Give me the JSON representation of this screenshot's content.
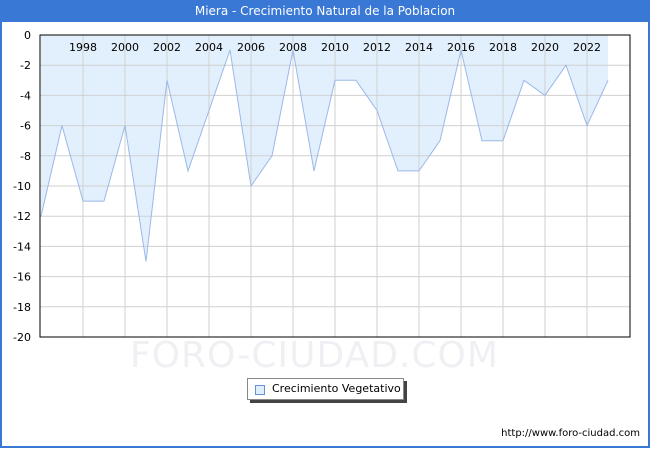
{
  "title": "Miera - Crecimiento Natural de la Poblacion",
  "legend": {
    "label": "Crecimiento Vegetativo"
  },
  "footer": {
    "url": "http://www.foro-ciudad.com"
  },
  "watermark": "FORO-CIUDAD.COM",
  "colors": {
    "header": "#3a78d6",
    "line": "#9bb8e8",
    "fill": "#e2f0fd",
    "grid": "#d0d0d0"
  },
  "chart_data": {
    "type": "area",
    "title": "Miera - Crecimiento Natural de la Poblacion",
    "xlabel": "",
    "ylabel": "",
    "x": [
      1996,
      1997,
      1998,
      1999,
      2000,
      2001,
      2002,
      2003,
      2004,
      2005,
      2006,
      2007,
      2008,
      2009,
      2010,
      2011,
      2012,
      2013,
      2014,
      2015,
      2016,
      2017,
      2018,
      2019,
      2020,
      2021,
      2022,
      2023
    ],
    "series": [
      {
        "name": "Crecimiento Vegetativo",
        "values": [
          -12,
          -6,
          -11,
          -11,
          -6,
          -15,
          -3,
          -9,
          -5,
          -1,
          -10,
          -8,
          -1,
          -9,
          -3,
          -3,
          -5,
          -9,
          -9,
          -7,
          -1,
          -7,
          -7,
          -3,
          -4,
          -2,
          -6,
          -3
        ]
      }
    ],
    "xticks": [
      "1998",
      "2000",
      "2002",
      "2004",
      "2006",
      "2008",
      "2010",
      "2012",
      "2014",
      "2016",
      "2018",
      "2020",
      "2022"
    ],
    "yticks": [
      "0",
      "-2",
      "-4",
      "-6",
      "-8",
      "-10",
      "-12",
      "-14",
      "-16",
      "-18",
      "-20"
    ],
    "ylim": [
      -20,
      0
    ],
    "grid": true,
    "legend_position": "bottom"
  }
}
